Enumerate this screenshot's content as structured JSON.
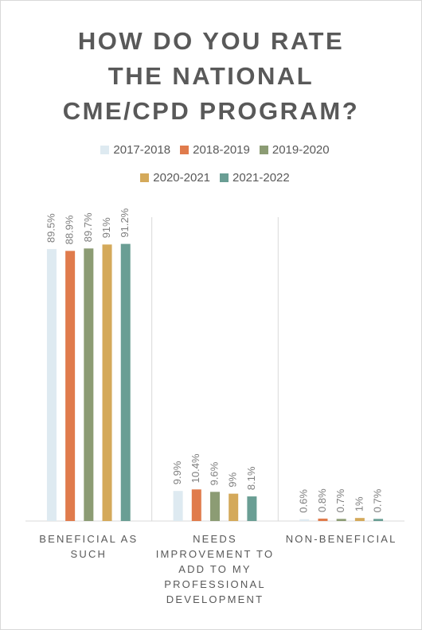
{
  "chart_data": {
    "type": "bar",
    "title": "HOW DO YOU RATE THE NATIONAL CME/CPD PROGRAM?",
    "categories": [
      "BENEFICIAL AS SUCH",
      "NEEDS IMPROVEMENT TO ADD TO MY PROFESSIONAL DEVELOPMENT",
      "NON-BENEFICIAL"
    ],
    "series": [
      {
        "name": "2017-2018",
        "color": "#deeaf1",
        "values": [
          89.5,
          9.9,
          0.6
        ],
        "value_labels": [
          "89.5%",
          "9.9%",
          "0.6%"
        ]
      },
      {
        "name": "2018-2019",
        "color": "#e07b4c",
        "values": [
          88.9,
          10.4,
          0.8
        ],
        "value_labels": [
          "88.9%",
          "10.4%",
          "0.8%"
        ]
      },
      {
        "name": "2019-2020",
        "color": "#8c9c74",
        "values": [
          89.7,
          9.6,
          0.7
        ],
        "value_labels": [
          "89.7%",
          "9.6%",
          "0.7%"
        ]
      },
      {
        "name": "2020-2021",
        "color": "#d4a95a",
        "values": [
          91,
          9,
          1
        ],
        "value_labels": [
          "91%",
          "9%",
          "1%"
        ]
      },
      {
        "name": "2021-2022",
        "color": "#6a9e94",
        "values": [
          91.2,
          8.1,
          0.7
        ],
        "value_labels": [
          "91.2%",
          "8.1%",
          "0.7%"
        ]
      }
    ],
    "ylim": [
      0,
      100
    ]
  }
}
